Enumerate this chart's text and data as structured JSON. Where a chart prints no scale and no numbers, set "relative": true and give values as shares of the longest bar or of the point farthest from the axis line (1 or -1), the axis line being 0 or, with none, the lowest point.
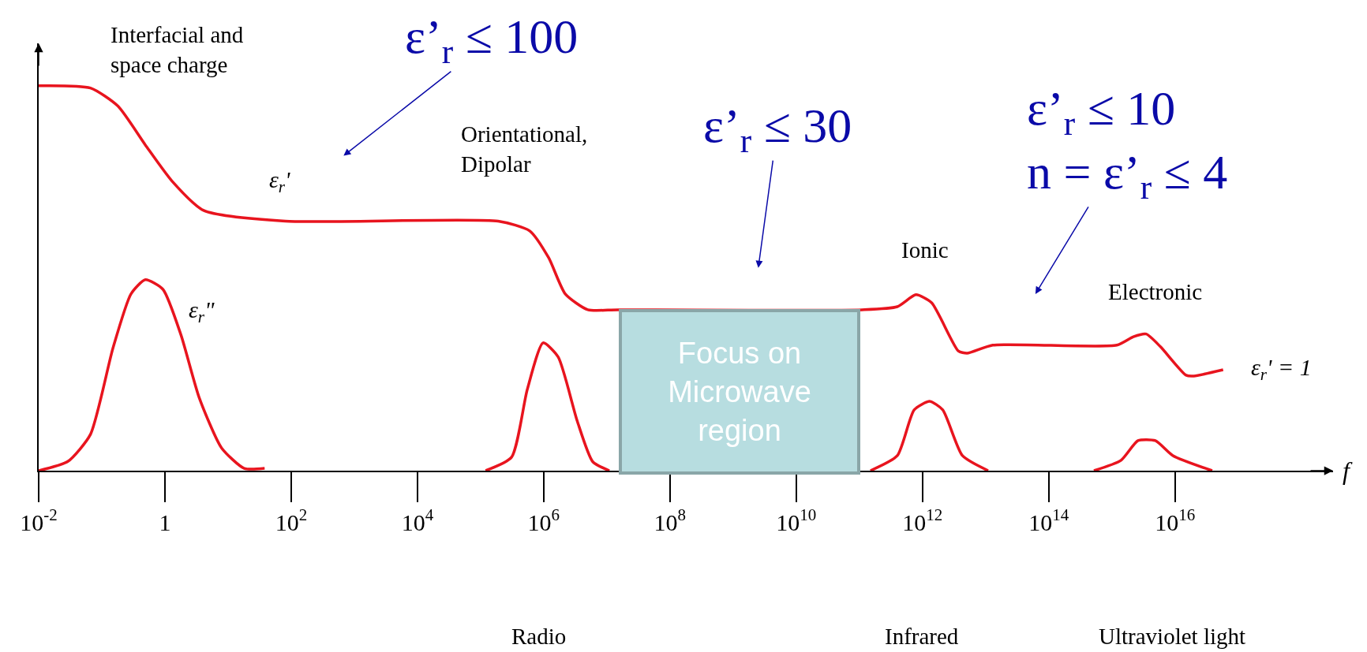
{
  "chart_data": {
    "type": "line",
    "relative": true,
    "log": "x",
    "legend": false,
    "tick_labels": "x",
    "marker": "none",
    "line_style": "solid",
    "xlabel": "f",
    "xlim": [
      0.01,
      3.2e+18
    ],
    "xticks": [
      {
        "value": 0.01,
        "label": "10$^{-2}$"
      },
      1,
      {
        "value": 100,
        "label": "10$^{2}$"
      },
      {
        "value": 10000.0,
        "label": "10$^{4}$"
      },
      {
        "value": 1000000.0,
        "label": "10$^{6}$"
      },
      {
        "value": 100000000.0,
        "label": "10$^{8}$"
      },
      {
        "value": 10000000000.0,
        "label": "10$^{10}$"
      },
      {
        "value": 1000000000000.0,
        "label": "10$^{12}$"
      },
      {
        "value": 100000000000000.0,
        "label": "10$^{14}$"
      },
      {
        "value": 1e+16,
        "label": "10$^{16}$"
      }
    ],
    "series": [
      {
        "name": "ε$_{r}$'",
        "color": "#e8141e",
        "x": [
          0.01,
          0.066,
          0.18,
          0.49,
          1.3,
          4.1,
          81,
          190000.0,
          600000.0,
          1200000.0,
          2200000.0,
          5000000.0,
          15000000.0,
          110000000000.0,
          400000000000.0,
          790000000000.0,
          1400000000000.0,
          3700000000000.0,
          5100000000000.0,
          13000000000000.0,
          1200000000000000.0,
          2200000000000000.0,
          3500000000000000.0,
          5900000000000000.0,
          1.5e+16,
          2e+16,
          5.8e+16
        ],
        "values": [
          1.0,
          0.994,
          0.947,
          0.846,
          0.752,
          0.676,
          0.648,
          0.648,
          0.623,
          0.553,
          0.459,
          0.418,
          0.418,
          0.418,
          0.426,
          0.457,
          0.436,
          0.311,
          0.305,
          0.326,
          0.326,
          0.348,
          0.355,
          0.322,
          0.248,
          0.246,
          0.262
        ]
      },
      {
        "name": "ε$_{r}$\"",
        "color": "#e8141e",
        "x": [
          0.01,
          0.029,
          0.066,
          0.15,
          0.29,
          0.49,
          0.93,
          1.8,
          3.5,
          7.9,
          18,
          38,
          10000.0,
          120000.0,
          310000.0,
          550000.0,
          980000.0,
          1700000.0,
          3400000.0,
          6000000.0,
          11000000.0,
          1000000000.0,
          150000000000.0,
          400000000000.0,
          740000000000.0,
          1300000000000.0,
          2100000000000.0,
          4300000000000.0,
          11000000000000.0,
          100000000000000.0,
          520000000000000.0,
          1400000000000000.0,
          2600000000000000.0,
          4900000000000000.0,
          9300000000000000.0,
          3.9e+16
        ],
        "values": [
          0,
          0.024,
          0.094,
          0.318,
          0.459,
          0.496,
          0.471,
          0.352,
          0.189,
          0.059,
          0.006,
          0.006,
          null,
          0,
          0.035,
          0.211,
          0.332,
          0.295,
          0.129,
          0.023,
          0,
          null,
          0,
          0.039,
          0.158,
          0.18,
          0.158,
          0.039,
          0,
          null,
          0,
          0.027,
          0.078,
          0.078,
          0.039,
          0
        ]
      }
    ],
    "annotations": [
      "Interfacial and\nspace charge",
      "ε’$_{r}$ ≤ 100",
      "Orientational,\nDipolar",
      "ε’$_{r}$ ≤ 30",
      "ε’$_{r}$ ≤ 10\nn = ε’$_{r}$ ≤ 4",
      "Ionic",
      "Electronic",
      "ε$_{r}$' = 1",
      "Focus on\nMicrowave\nregion",
      "Radio",
      "Infrared",
      "Ultraviolet light"
    ]
  }
}
